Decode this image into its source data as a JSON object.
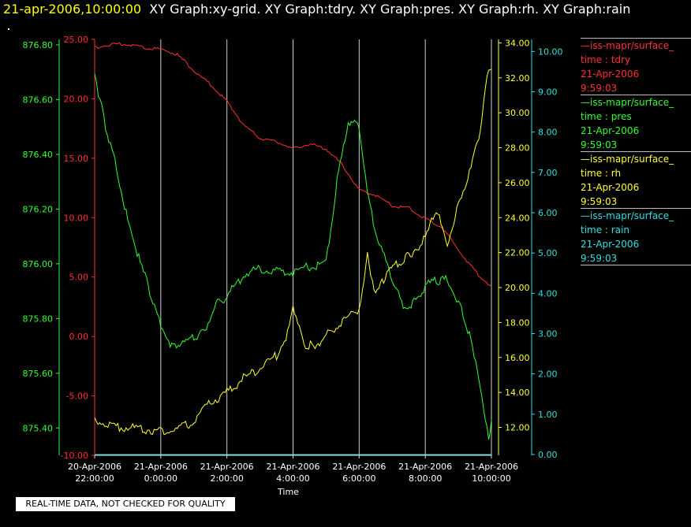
{
  "header": {
    "datetime": "21-apr-2006,10:00:00",
    "titles": "XY Graph:xy-grid.  XY Graph:tdry.  XY Graph:pres.  XY Graph:rh.  XY Graph:rain"
  },
  "banner": "REAL-TIME DATA, NOT CHECKED FOR QUALITY",
  "legend": [
    {
      "line1": "—iss-mapr/surface_",
      "line2": "time : tdry",
      "line3": "21-Apr-2006",
      "line4": "9:59:03",
      "color": "#ff3030"
    },
    {
      "line1": "—iss-mapr/surface_",
      "line2": "time : pres",
      "line3": "21-Apr-2006",
      "line4": "9:59:03",
      "color": "#30ff30"
    },
    {
      "line1": "—iss-mapr/surface_",
      "line2": "time : rh",
      "line3": "21-Apr-2006",
      "line4": "9:59:03",
      "color": "#ffff30"
    },
    {
      "line1": "—iss-mapr/surface_",
      "line2": "time : rain",
      "line3": "21-Apr-2006",
      "line4": "9:59:03",
      "color": "#30e0e0"
    }
  ],
  "chart_data": {
    "type": "line",
    "xlabel": "Time",
    "x_ticks": [
      {
        "line1": "20-Apr-2006",
        "line2": "22:00:00"
      },
      {
        "line1": "21-Apr-2006",
        "line2": "0:00:00"
      },
      {
        "line1": "21-Apr-2006",
        "line2": "2:00:00"
      },
      {
        "line1": "21-Apr-2006",
        "line2": "4:00:00"
      },
      {
        "line1": "21-Apr-2006",
        "line2": "6:00:00"
      },
      {
        "line1": "21-Apr-2006",
        "line2": "8:00:00"
      },
      {
        "line1": "21-Apr-2006",
        "line2": "10:00:00"
      }
    ],
    "xlim": [
      "2006-04-20 22:00",
      "2006-04-21 10:00"
    ],
    "grid": "vertical",
    "axes": {
      "pres": {
        "color": "#30ff30",
        "ylim": [
          875.3,
          876.82
        ],
        "ticks": [
          "875.40",
          "875.60",
          "875.80",
          "876.00",
          "876.20",
          "876.40",
          "876.60",
          "876.80"
        ]
      },
      "tdry": {
        "color": "#ff3030",
        "ylim": [
          -10,
          25
        ],
        "ticks": [
          "-10.00",
          "-5.00",
          "0.00",
          "5.00",
          "10.00",
          "15.00",
          "20.00",
          "25.00"
        ]
      },
      "rh": {
        "color": "#ffff30",
        "ylim": [
          10.4,
          34.2
        ],
        "ticks": [
          "12.00",
          "14.00",
          "16.00",
          "18.00",
          "20.00",
          "22.00",
          "24.00",
          "26.00",
          "28.00",
          "30.00",
          "32.00",
          "34.00"
        ]
      },
      "rain": {
        "color": "#30e0e0",
        "ylim": [
          -0.02,
          10.3
        ],
        "ticks": [
          "0.00",
          "1.00",
          "2.00",
          "3.00",
          "4.00",
          "5.00",
          "6.00",
          "7.00",
          "8.00",
          "9.00",
          "10.00"
        ]
      }
    },
    "series": [
      {
        "name": "tdry",
        "axis": "tdry",
        "color": "#ff3030",
        "x": [
          "2006-04-20 22:00",
          "2006-04-20 22:30",
          "2006-04-20 23:00",
          "2006-04-20 23:30",
          "2006-04-21 00:00",
          "2006-04-21 00:30",
          "2006-04-21 01:00",
          "2006-04-21 01:30",
          "2006-04-21 02:00",
          "2006-04-21 02:30",
          "2006-04-21 03:00",
          "2006-04-21 03:30",
          "2006-04-21 04:00",
          "2006-04-21 04:30",
          "2006-04-21 05:00",
          "2006-04-21 05:30",
          "2006-04-21 06:00",
          "2006-04-21 06:30",
          "2006-04-21 07:00",
          "2006-04-21 07:30",
          "2006-04-21 08:00",
          "2006-04-21 08:30",
          "2006-04-21 09:00",
          "2006-04-21 09:30",
          "2006-04-21 10:00"
        ],
        "y": [
          24.3,
          24.6,
          24.6,
          24.3,
          24.2,
          23.7,
          22.4,
          21.2,
          19.8,
          17.8,
          16.7,
          16.4,
          15.8,
          16.2,
          15.8,
          14.4,
          12.3,
          11.9,
          11.0,
          10.8,
          9.9,
          9.2,
          7.3,
          5.5,
          4.2
        ]
      },
      {
        "name": "pres",
        "axis": "pres",
        "color": "#30ff30",
        "x": [
          "2006-04-20 22:00",
          "2006-04-20 22:10",
          "2006-04-20 22:20",
          "2006-04-20 22:40",
          "2006-04-20 23:00",
          "2006-04-20 23:20",
          "2006-04-20 23:40",
          "2006-04-21 00:00",
          "2006-04-21 00:20",
          "2006-04-21 00:40",
          "2006-04-21 01:00",
          "2006-04-21 01:20",
          "2006-04-21 01:40",
          "2006-04-21 02:00",
          "2006-04-21 02:30",
          "2006-04-21 03:00",
          "2006-04-21 03:30",
          "2006-04-21 04:00",
          "2006-04-21 04:30",
          "2006-04-21 05:00",
          "2006-04-21 05:20",
          "2006-04-21 05:40",
          "2006-04-21 06:00",
          "2006-04-21 06:20",
          "2006-04-21 06:40",
          "2006-04-21 07:00",
          "2006-04-21 07:20",
          "2006-04-21 07:40",
          "2006-04-21 08:00",
          "2006-04-21 08:20",
          "2006-04-21 08:40",
          "2006-04-21 09:00",
          "2006-04-21 09:20",
          "2006-04-21 09:40",
          "2006-04-21 09:55",
          "2006-04-21 10:00"
        ],
        "y": [
          876.68,
          876.6,
          876.5,
          876.35,
          876.16,
          876.02,
          875.9,
          875.78,
          875.7,
          875.71,
          875.73,
          875.76,
          875.85,
          875.88,
          875.96,
          875.98,
          875.97,
          875.97,
          875.99,
          876.0,
          876.3,
          876.52,
          876.5,
          876.2,
          876.05,
          875.95,
          875.84,
          875.86,
          875.92,
          875.94,
          875.94,
          875.86,
          875.74,
          875.55,
          875.36,
          875.43
        ]
      },
      {
        "name": "rh",
        "axis": "rh",
        "color": "#ffff30",
        "x": [
          "2006-04-20 22:00",
          "2006-04-20 22:30",
          "2006-04-20 23:00",
          "2006-04-20 23:30",
          "2006-04-21 00:00",
          "2006-04-21 00:30",
          "2006-04-21 01:00",
          "2006-04-21 01:30",
          "2006-04-21 02:00",
          "2006-04-21 02:30",
          "2006-04-21 03:00",
          "2006-04-21 03:30",
          "2006-04-21 03:50",
          "2006-04-21 04:00",
          "2006-04-21 04:20",
          "2006-04-21 04:40",
          "2006-04-21 05:00",
          "2006-04-21 05:30",
          "2006-04-21 06:00",
          "2006-04-21 06:15",
          "2006-04-21 06:30",
          "2006-04-21 06:50",
          "2006-04-21 07:10",
          "2006-04-21 07:30",
          "2006-04-21 08:00",
          "2006-04-21 08:20",
          "2006-04-21 08:40",
          "2006-04-21 09:00",
          "2006-04-21 09:20",
          "2006-04-21 09:40",
          "2006-04-21 09:55",
          "2006-04-21 10:00"
        ],
        "y": [
          12.5,
          12.1,
          12.0,
          11.9,
          11.8,
          11.9,
          12.3,
          13.4,
          14.0,
          14.8,
          15.4,
          16.1,
          17.4,
          18.7,
          16.8,
          16.6,
          17.3,
          18.0,
          18.8,
          21.8,
          19.5,
          20.9,
          21.4,
          21.8,
          22.8,
          24.5,
          22.4,
          24.8,
          26.5,
          29.0,
          32.6,
          32.5
        ]
      },
      {
        "name": "rain",
        "axis": "rain",
        "color": "#30e0e0",
        "x": [
          "2006-04-20 22:00",
          "2006-04-21 10:00"
        ],
        "y": [
          0.0,
          0.0
        ]
      }
    ]
  }
}
